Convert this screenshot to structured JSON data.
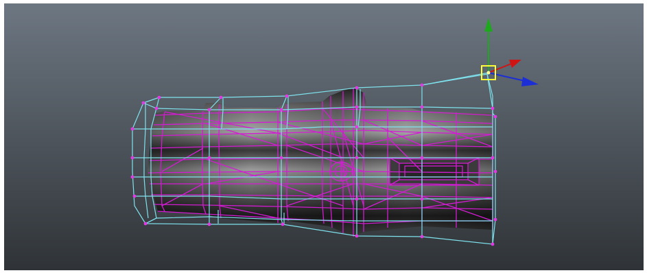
{
  "viewport": {
    "background_top": "#6d7782",
    "background_bottom": "#2f3337",
    "frame": "#ffffff"
  },
  "mesh": {
    "shade_light": "#a9a9a9",
    "shade_dark": "#161616",
    "wire_color": "#d21cd2",
    "vertex_color": "#e23ae2"
  },
  "cage": {
    "wire_color": "#7fe3ee",
    "vertex_color": "#e23ae2"
  },
  "manipulator": {
    "x_axis_color": "#d01414",
    "y_axis_color": "#1ea81e",
    "z_axis_color": "#1c2fd6",
    "pivot_color": "#ffff33",
    "icon": "move-tool-manipulator-icon"
  }
}
